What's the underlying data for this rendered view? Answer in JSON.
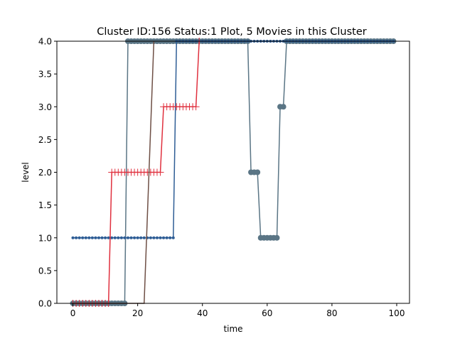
{
  "chart_data": {
    "type": "line",
    "title": "Cluster ID:156 Status:1 Plot, 5 Movies in this Cluster",
    "xlabel": "time",
    "ylabel": "level",
    "xlim": [
      -4.95,
      103.95
    ],
    "ylim": [
      0,
      4
    ],
    "xticks": [
      0,
      20,
      40,
      60,
      80,
      100
    ],
    "yticks": [
      0.0,
      0.5,
      1.0,
      1.5,
      2.0,
      2.5,
      3.0,
      3.5,
      4.0
    ],
    "xtick_labels": [
      "0",
      "20",
      "40",
      "60",
      "80",
      "100"
    ],
    "ytick_labels": [
      "0.0",
      "0.5",
      "1.0",
      "1.5",
      "2.0",
      "2.5",
      "3.0",
      "3.5",
      "4.0"
    ],
    "grid": false,
    "legend": "none",
    "series": [
      {
        "color": "#5a7585",
        "marker": "circle",
        "marker_size": 6,
        "x_start": 0,
        "x_end": 99,
        "segments": [
          [
            0,
            16,
            0
          ],
          [
            17,
            54,
            4
          ],
          [
            55,
            57,
            2
          ],
          [
            58,
            63,
            1
          ],
          [
            64,
            65,
            3
          ],
          [
            66,
            99,
            4
          ]
        ]
      },
      {
        "color": "#2e5d95",
        "marker": "dot",
        "marker_size": 3.5,
        "x_start": 0,
        "x_end": 99,
        "segments": [
          [
            0,
            31,
            1
          ],
          [
            32,
            99,
            4
          ]
        ]
      },
      {
        "color": "#e0303e",
        "marker": "plus",
        "marker_size": 5,
        "x_start": 0,
        "x_end": 39,
        "segments": [
          [
            0,
            11,
            0
          ],
          [
            12,
            27,
            2
          ],
          [
            28,
            38,
            3
          ],
          [
            39,
            39,
            4
          ]
        ]
      },
      {
        "color": "#6e4f45",
        "marker": "none",
        "marker_size": 0,
        "x_start": 0,
        "x_end": 25,
        "segments": [
          [
            0,
            22,
            0
          ],
          [
            25,
            25,
            4
          ]
        ]
      }
    ]
  }
}
